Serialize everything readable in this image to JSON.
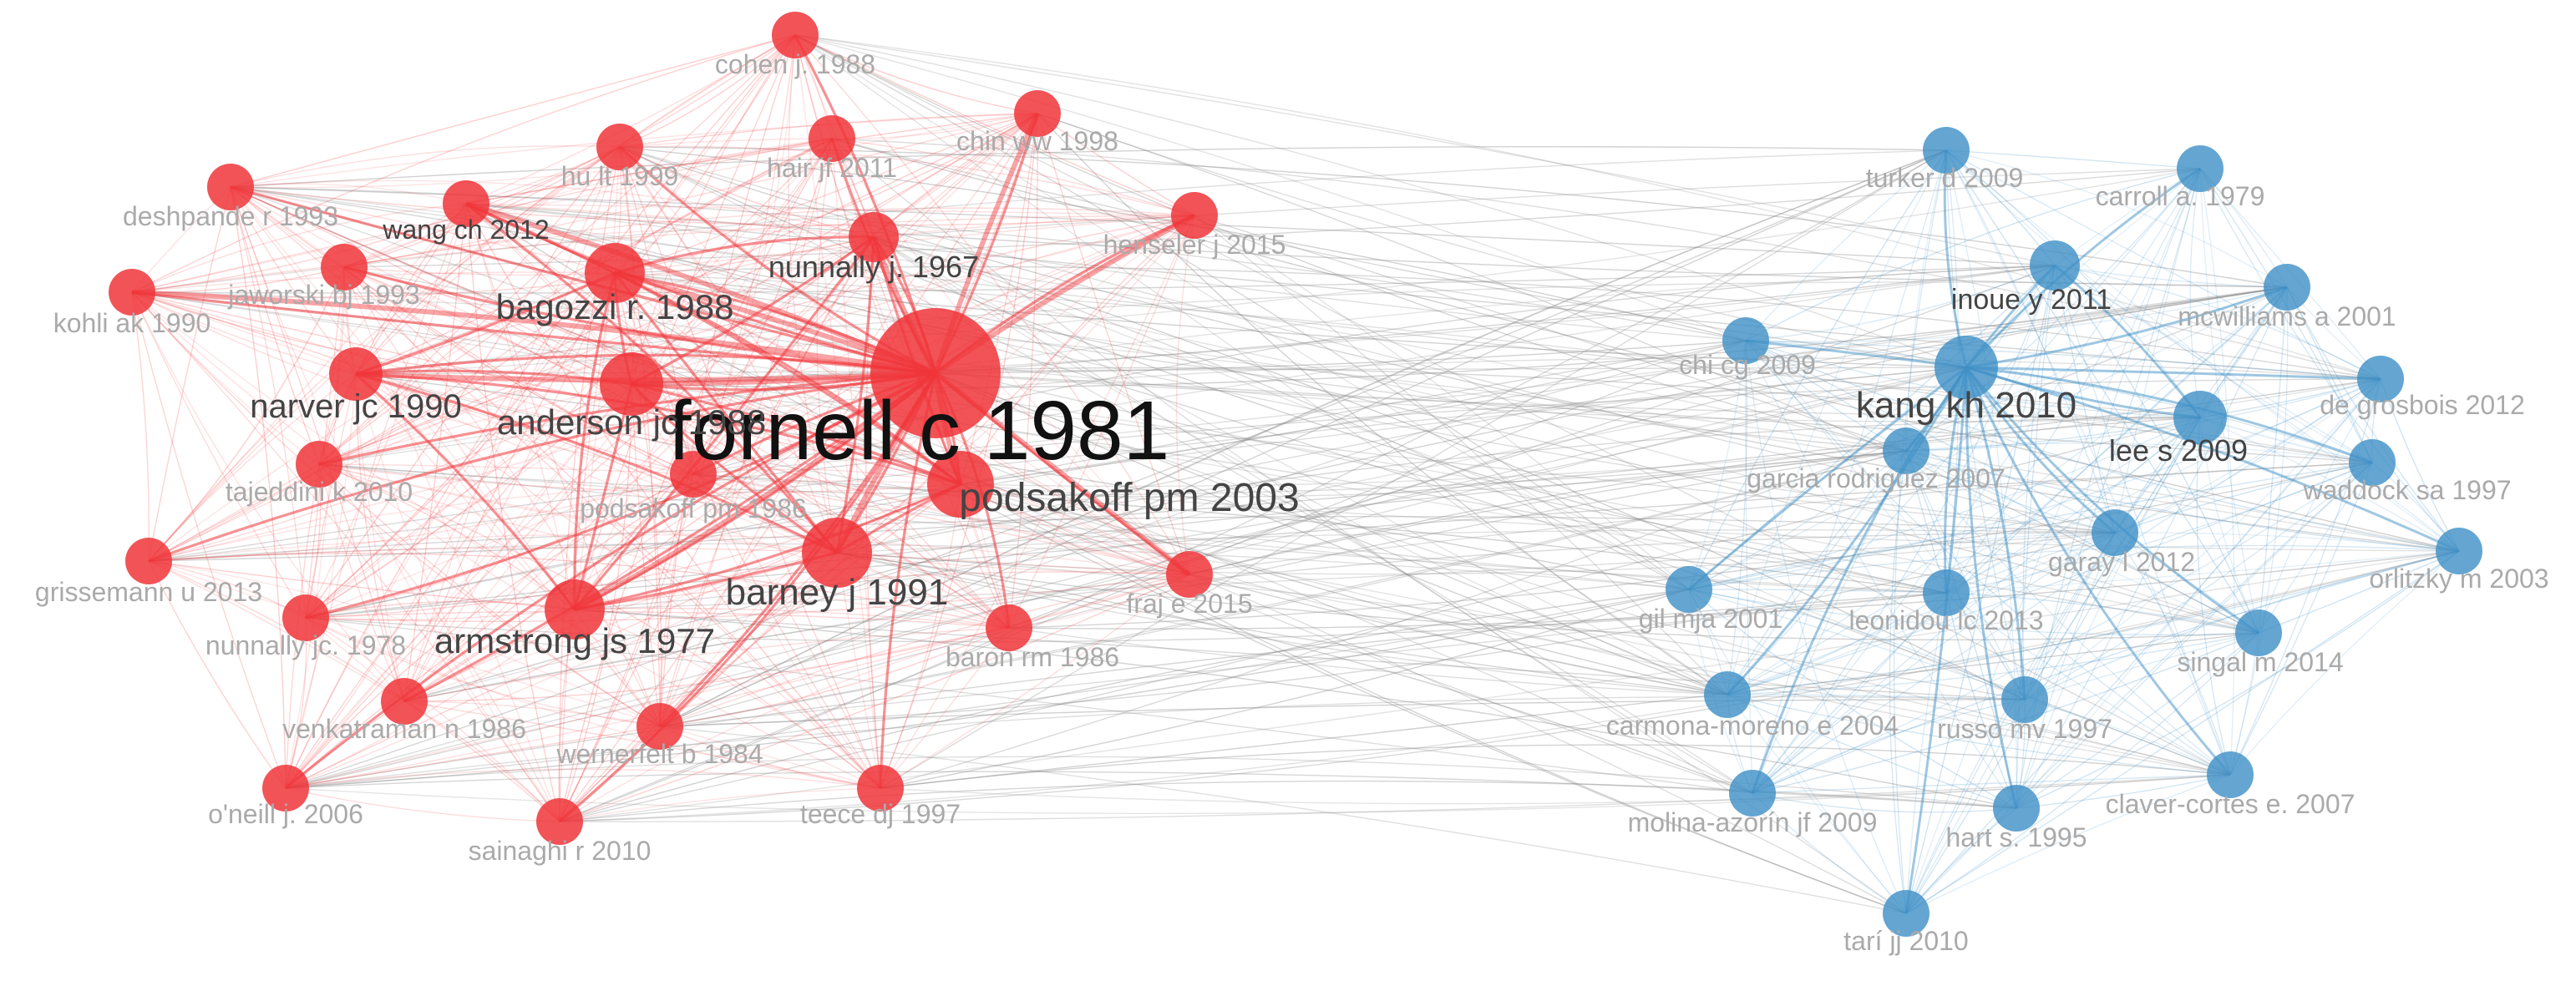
{
  "colors": {
    "red_cluster": "#f0353a",
    "blue_cluster": "#3d8fc6",
    "cross_link": "#8a8a8a",
    "label_major": "#444444",
    "label_minor": "#aaaaaa"
  },
  "nodes": [
    {
      "id": "fornell",
      "label": "fornell c 1981",
      "cluster": "red",
      "weight": 10
    },
    {
      "id": "podsakoff2003",
      "label": "podsakoff pm 2003",
      "cluster": "red",
      "weight": 6
    },
    {
      "id": "barney",
      "label": "barney j 1991",
      "cluster": "red",
      "weight": 6
    },
    {
      "id": "anderson",
      "label": "anderson jc 1988",
      "cluster": "red",
      "weight": 5
    },
    {
      "id": "bagozzi",
      "label": "bagozzi r. 1988",
      "cluster": "red",
      "weight": 5
    },
    {
      "id": "armstrong",
      "label": "armstrong js 1977",
      "cluster": "red",
      "weight": 5
    },
    {
      "id": "narver",
      "label": "narver jc 1990",
      "cluster": "red",
      "weight": 4
    },
    {
      "id": "nunnally1967",
      "label": "nunnally j. 1967",
      "cluster": "red",
      "weight": 4
    },
    {
      "id": "wangch",
      "label": "wang ch 2012",
      "cluster": "red",
      "weight": 3
    },
    {
      "id": "cohen",
      "label": "cohen j. 1988",
      "cluster": "red",
      "weight": 2
    },
    {
      "id": "hair",
      "label": "hair jf 2011",
      "cluster": "red",
      "weight": 2
    },
    {
      "id": "hu",
      "label": "hu lt 1999",
      "cluster": "red",
      "weight": 2
    },
    {
      "id": "chin",
      "label": "chin ww 1998",
      "cluster": "red",
      "weight": 2
    },
    {
      "id": "henseler",
      "label": "henseler j 2015",
      "cluster": "red",
      "weight": 2
    },
    {
      "id": "deshpande",
      "label": "deshpande r 1993",
      "cluster": "red",
      "weight": 2
    },
    {
      "id": "jaworski",
      "label": "jaworski bj 1993",
      "cluster": "red",
      "weight": 2
    },
    {
      "id": "kohli",
      "label": "kohli ak 1990",
      "cluster": "red",
      "weight": 2
    },
    {
      "id": "tajeddini",
      "label": "tajeddini k 2010",
      "cluster": "red",
      "weight": 2
    },
    {
      "id": "podsakoff1986",
      "label": "podsakoff pm 1986",
      "cluster": "red",
      "weight": 2
    },
    {
      "id": "grissemann",
      "label": "grissemann u 2013",
      "cluster": "red",
      "weight": 2
    },
    {
      "id": "nunnally1978",
      "label": "nunnally jc. 1978",
      "cluster": "red",
      "weight": 2
    },
    {
      "id": "fraj",
      "label": "fraj e 2015",
      "cluster": "red",
      "weight": 2
    },
    {
      "id": "baron",
      "label": "baron rm 1986",
      "cluster": "red",
      "weight": 2
    },
    {
      "id": "venkatraman",
      "label": "venkatraman n 1986",
      "cluster": "red",
      "weight": 2
    },
    {
      "id": "wernerfelt",
      "label": "wernerfelt b 1984",
      "cluster": "red",
      "weight": 2
    },
    {
      "id": "oneill",
      "label": "o'neill j. 2006",
      "cluster": "red",
      "weight": 2
    },
    {
      "id": "sainaghi",
      "label": "sainaghi r 2010",
      "cluster": "red",
      "weight": 2
    },
    {
      "id": "teece",
      "label": "teece dj 1997",
      "cluster": "red",
      "weight": 2
    },
    {
      "id": "kang",
      "label": "kang kh 2010",
      "cluster": "blue",
      "weight": 5
    },
    {
      "id": "inoue",
      "label": "inoue y 2011",
      "cluster": "blue",
      "weight": 3
    },
    {
      "id": "lee",
      "label": "lee s 2009",
      "cluster": "blue",
      "weight": 3
    },
    {
      "id": "garcia",
      "label": "garcia rodriguez 2007",
      "cluster": "blue",
      "weight": 2
    },
    {
      "id": "turker",
      "label": "turker d 2009",
      "cluster": "blue",
      "weight": 2
    },
    {
      "id": "carroll",
      "label": "carroll a. 1979",
      "cluster": "blue",
      "weight": 2
    },
    {
      "id": "mcwilliams",
      "label": "mcwilliams a 2001",
      "cluster": "blue",
      "weight": 2
    },
    {
      "id": "chicg",
      "label": "chi cg 2009",
      "cluster": "blue",
      "weight": 2
    },
    {
      "id": "degrosbois",
      "label": "de grosbois 2012",
      "cluster": "blue",
      "weight": 2
    },
    {
      "id": "waddock",
      "label": "waddock sa 1997",
      "cluster": "blue",
      "weight": 2
    },
    {
      "id": "garay",
      "label": "garay l 2012",
      "cluster": "blue",
      "weight": 2
    },
    {
      "id": "orlitzky",
      "label": "orlitzky m 2003",
      "cluster": "blue",
      "weight": 2
    },
    {
      "id": "gil",
      "label": "gil mja 2001",
      "cluster": "blue",
      "weight": 2
    },
    {
      "id": "leonidou",
      "label": "leonidou lc 2013",
      "cluster": "blue",
      "weight": 2
    },
    {
      "id": "singal",
      "label": "singal m 2014",
      "cluster": "blue",
      "weight": 2
    },
    {
      "id": "carmona",
      "label": "carmona-moreno e 2004",
      "cluster": "blue",
      "weight": 2
    },
    {
      "id": "russo",
      "label": "russo mv 1997",
      "cluster": "blue",
      "weight": 2
    },
    {
      "id": "molina",
      "label": "molina-azorín jf 2009",
      "cluster": "blue",
      "weight": 2
    },
    {
      "id": "hart",
      "label": "hart s. 1995",
      "cluster": "blue",
      "weight": 2
    },
    {
      "id": "claver",
      "label": "claver-cortes e. 2007",
      "cluster": "blue",
      "weight": 2
    },
    {
      "id": "tari",
      "label": "tarí jj 2010",
      "cluster": "blue",
      "weight": 2
    }
  ]
}
